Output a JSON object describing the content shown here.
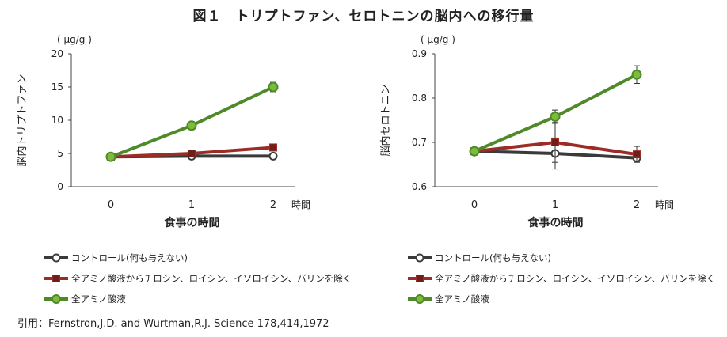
{
  "figure": {
    "title": "図１　トリプトファン、セロトニンの脳内への移行量",
    "citation": "引用：Fernstron,J.D. and Wurtman,R.J. Science 178,414,1972"
  },
  "colors": {
    "control": "#3a3a3a",
    "minus_aa": "#9b2d26",
    "all_aa": "#4f8a2a",
    "all_aa_marker": "#7dbb3b",
    "minus_aa_marker": "#6e1f1a"
  },
  "chart_data": [
    {
      "type": "line",
      "unit": "( µg/g )",
      "ylabel": "脳内トリプトファン",
      "xlabel": "食事の時間",
      "x_suffix": "時間",
      "x": [
        0,
        1,
        2
      ],
      "ylim": [
        0,
        20
      ],
      "yticks": [
        "0",
        "5",
        "10",
        "15",
        "20"
      ],
      "xticks": [
        "0",
        "1",
        "2"
      ],
      "series": [
        {
          "name": "コントロール(何も与えない)",
          "key": "control",
          "marker": "circle",
          "values": [
            4.5,
            4.6,
            4.6
          ],
          "err": [
            0,
            0.2,
            0.2
          ]
        },
        {
          "name": "全アミノ酸液からチロシン、ロイシン、イソロイシン、バリンを除く",
          "key": "minus_aa",
          "marker": "square",
          "values": [
            4.5,
            5.0,
            5.9
          ],
          "err": [
            0,
            0.3,
            0.5
          ]
        },
        {
          "name": "全アミノ酸液",
          "key": "all_aa",
          "marker": "circle",
          "values": [
            4.5,
            9.2,
            15.0
          ],
          "err": [
            0,
            0.3,
            0.7
          ]
        }
      ]
    },
    {
      "type": "line",
      "unit": "( µg/g )",
      "ylabel": "脳内セロトニン",
      "xlabel": "食事の時間",
      "x_suffix": "時間",
      "x": [
        0,
        1,
        2
      ],
      "ylim": [
        0.6,
        0.9
      ],
      "yticks": [
        "0.6",
        "0.7",
        "0.8",
        "0.9"
      ],
      "xticks": [
        "0",
        "1",
        "2"
      ],
      "series": [
        {
          "name": "コントロール(何も与えない)",
          "key": "control",
          "marker": "circle",
          "values": [
            0.68,
            0.675,
            0.665
          ],
          "err": [
            0,
            0.035,
            0.008
          ]
        },
        {
          "name": "全アミノ酸液からチロシン、ロイシン、イソロイシン、バリンを除く",
          "key": "minus_aa",
          "marker": "square",
          "values": [
            0.68,
            0.7,
            0.673
          ],
          "err": [
            0,
            0.045,
            0.018
          ]
        },
        {
          "name": "全アミノ酸液",
          "key": "all_aa",
          "marker": "circle",
          "values": [
            0.68,
            0.758,
            0.853
          ],
          "err": [
            0,
            0.015,
            0.02
          ]
        }
      ]
    }
  ]
}
